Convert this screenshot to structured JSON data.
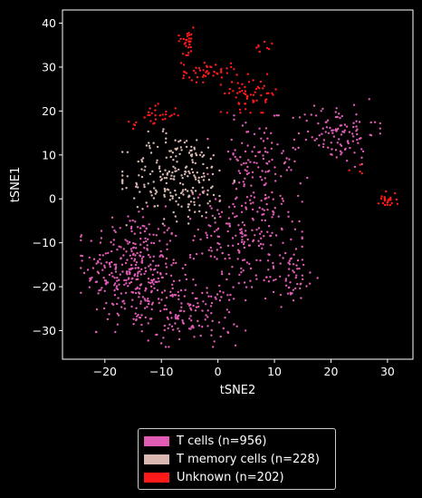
{
  "chart_data": {
    "type": "scatter",
    "title": "",
    "xlabel": "tSNE2",
    "ylabel": "tSNE1",
    "xlim": [
      -27.5,
      34.5
    ],
    "ylim": [
      -36.5,
      43
    ],
    "x_ticks": [
      -20,
      -10,
      0,
      10,
      20,
      30
    ],
    "y_ticks": [
      -30,
      -20,
      -10,
      0,
      10,
      20,
      30,
      40
    ],
    "grid": false,
    "legend_position": "below",
    "series": [
      {
        "name": "T cells (n=956)",
        "color": "#e05cb4",
        "count": 956,
        "clusters": [
          {
            "cx": -15,
            "cy": -16,
            "sx": 4.2,
            "sy": 6.5,
            "n": 330
          },
          {
            "cx": -5,
            "cy": -26,
            "sx": 4.5,
            "sy": 3.5,
            "n": 150
          },
          {
            "cx": 5,
            "cy": -8,
            "sx": 4.5,
            "sy": 5.5,
            "n": 200
          },
          {
            "cx": 7,
            "cy": 8,
            "sx": 4,
            "sy": 5,
            "n": 110
          },
          {
            "cx": 21,
            "cy": 15,
            "sx": 3.5,
            "sy": 3.5,
            "n": 110
          },
          {
            "cx": 13,
            "cy": -18,
            "sx": 2.5,
            "sy": 3,
            "n": 56
          }
        ]
      },
      {
        "name": "T memory cells (n=228)",
        "color": "#d8b8b0",
        "count": 228,
        "clusters": [
          {
            "cx": -7,
            "cy": 5,
            "sx": 4.5,
            "sy": 5,
            "n": 228
          }
        ]
      },
      {
        "name": "Unknown (n=202)",
        "color": "#ff1a1a",
        "count": 202,
        "clusters": [
          {
            "cx": -5.5,
            "cy": 36,
            "sx": 0.8,
            "sy": 1.5,
            "n": 30
          },
          {
            "cx": -2,
            "cy": 29,
            "sx": 2.2,
            "sy": 1.2,
            "n": 45
          },
          {
            "cx": 6,
            "cy": 24,
            "sx": 2.5,
            "sy": 2,
            "n": 60
          },
          {
            "cx": -11,
            "cy": 19,
            "sx": 1.8,
            "sy": 1.2,
            "n": 25
          },
          {
            "cx": 30,
            "cy": 0,
            "sx": 0.8,
            "sy": 0.9,
            "n": 25
          },
          {
            "cx": 8,
            "cy": 34,
            "sx": 1.5,
            "sy": 0.8,
            "n": 8
          },
          {
            "cx": 25,
            "cy": 6,
            "sx": 0.8,
            "sy": 0.8,
            "n": 4
          },
          {
            "cx": -15,
            "cy": 17,
            "sx": 0.5,
            "sy": 0.5,
            "n": 5
          }
        ]
      }
    ]
  }
}
